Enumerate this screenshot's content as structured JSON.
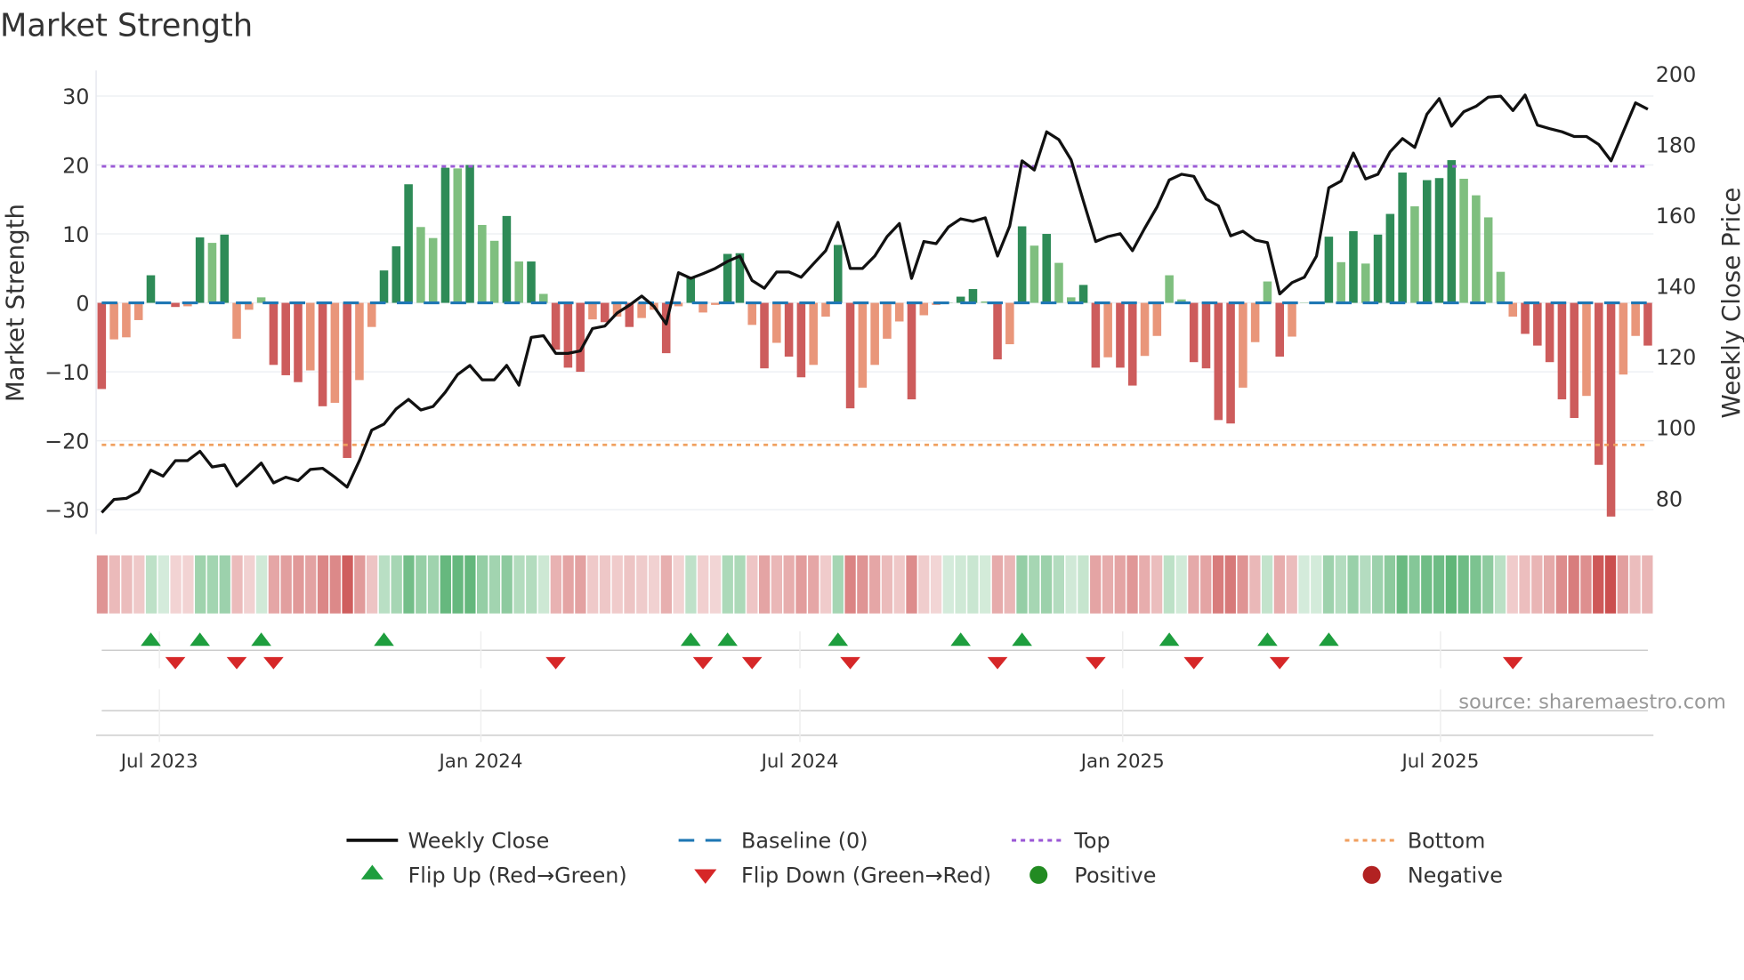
{
  "title": "Market Strength",
  "source": "source: sharemaestro.com",
  "colors": {
    "pos_strong": "#2e8b57",
    "pos_weak": "#7fbf7f",
    "neg_strong": "#cd5c5c",
    "neg_weak": "#e9967a",
    "line": "#111111",
    "baseline": "#1f77b4",
    "top": "#9b59d6",
    "bottom": "#f0a060",
    "flip_up": "#1e9e3e",
    "flip_down": "#d62728",
    "positive": "#228b22",
    "negative": "#b22222"
  },
  "legend": {
    "weekly_close": "Weekly Close",
    "baseline": "Baseline (0)",
    "top": "Top",
    "bottom": "Bottom",
    "flip_up": "Flip Up (Red→Green)",
    "flip_down": "Flip Down (Green→Red)",
    "positive": "Positive",
    "negative": "Negative"
  },
  "chart_data": {
    "type": "bar",
    "title": "Market Strength",
    "ylabel": "Market Strength",
    "y2label": "Weekly Close Price",
    "ylim": [
      -33,
      33
    ],
    "y2lim": [
      74,
      205
    ],
    "yticks": [
      "30",
      "20",
      "10",
      "0",
      "−10",
      "−20",
      "−30"
    ],
    "ytick_values": [
      30,
      20,
      10,
      0,
      -10,
      -20,
      -30
    ],
    "y2ticks": [
      "200",
      "180",
      "160",
      "140",
      "120",
      "100",
      "80"
    ],
    "y2tick_values": [
      200,
      180,
      160,
      140,
      120,
      100,
      80
    ],
    "top_level": 19.8,
    "bottom_level": -20.6,
    "baseline": 0,
    "xticks": [
      {
        "label": "Jul 2023",
        "week": 5.7
      },
      {
        "label": "Jan 2024",
        "week": 31.9
      },
      {
        "label": "Jul 2024",
        "week": 57.9
      },
      {
        "label": "Jan 2025",
        "week": 84.2
      },
      {
        "label": "Jul 2025",
        "week": 110.1
      }
    ],
    "strength": [
      -12.5,
      -5.3,
      -5,
      -2.5,
      4,
      0,
      -0.6,
      -0.5,
      9.5,
      8.7,
      9.9,
      -5.2,
      -1,
      0.8,
      -9,
      -10.5,
      -11.5,
      -9.8,
      -15,
      -14.5,
      -22.5,
      -11.2,
      -3.5,
      4.7,
      8.2,
      17.2,
      11,
      9.4,
      19.6,
      19.5,
      20,
      11.3,
      9,
      12.6,
      6,
      6,
      1.3,
      -6.8,
      -9.4,
      -10,
      -2.4,
      -2.8,
      -2,
      -3.5,
      -2.2,
      -1,
      -7.3,
      -0.5,
      3.8,
      -1.4,
      -0.3,
      7.1,
      7.2,
      -3.2,
      -9.5,
      -5.8,
      -7.8,
      -10.8,
      -9,
      -2,
      8.4,
      -15.3,
      -12.3,
      -9,
      -5.2,
      -2.7,
      -14,
      -1.8,
      -0.3,
      0,
      0.9,
      2,
      0.2,
      -8.2,
      -6,
      11.1,
      8.3,
      10,
      5.8,
      0.8,
      2.6,
      -9.4,
      -7.9,
      -9.4,
      -12,
      -7.7,
      -4.8,
      4,
      0.5,
      -8.6,
      -9.5,
      -17,
      -17.5,
      -12.3,
      -5.7,
      3.1,
      -7.8,
      -4.9,
      0,
      0.1,
      9.6,
      5.9,
      10.4,
      5.7,
      9.9,
      12.9,
      18.9,
      14,
      17.8,
      18.1,
      20.7,
      18,
      15.6,
      12.4,
      4.5,
      -2,
      -4.5,
      -6.2,
      -8.6,
      -14,
      -16.7,
      -13.5,
      -23.5,
      -31,
      -10.4,
      -4.8,
      -6.2
    ],
    "weekly_close": [
      76,
      79.7,
      80,
      81.9,
      88,
      86.3,
      90.7,
      90.7,
      93.3,
      88.9,
      89.5,
      83.5,
      86.7,
      90,
      84.4,
      86,
      85,
      88.2,
      88.5,
      86,
      83.2,
      90.7,
      99.3,
      101,
      105.3,
      108,
      105,
      106,
      110,
      115,
      117.6,
      113.5,
      113.5,
      117.6,
      112,
      125.5,
      126,
      121,
      121,
      121.7,
      128,
      128.7,
      132.4,
      134.6,
      137.2,
      134.3,
      129.3,
      143.8,
      142.2,
      143.5,
      145,
      147,
      148.5,
      141.6,
      139.4,
      144,
      144,
      142.5,
      146.3,
      150,
      158,
      145,
      145,
      148.5,
      154,
      157.7,
      142.2,
      152.6,
      152,
      156.7,
      159,
      158.3,
      159.3,
      148.5,
      157,
      175.4,
      172.8,
      183.6,
      181.4,
      175.7,
      164,
      152.6,
      154,
      154.8,
      150,
      156.4,
      162.4,
      170,
      171.6,
      171,
      164.6,
      162.7,
      154.2,
      155.5,
      153,
      152.3,
      137.8,
      141,
      142.5,
      148.5,
      167.8,
      169.7,
      177.6,
      170.3,
      171.6,
      178,
      181.7,
      179.2,
      188.6,
      193,
      185.2,
      189.3,
      190.8,
      193.4,
      193.7,
      189.6,
      194,
      185.5,
      184.5,
      183.6,
      182.3,
      182.3,
      180,
      175.4,
      183.6,
      191.8,
      190
    ],
    "flip_up_weeks": [
      5,
      9,
      14,
      24,
      49,
      52,
      61,
      71,
      76,
      88,
      96,
      101
    ],
    "flip_down_weeks": [
      7,
      12,
      15,
      38,
      50,
      54,
      62,
      74,
      82,
      90,
      97,
      116
    ]
  }
}
